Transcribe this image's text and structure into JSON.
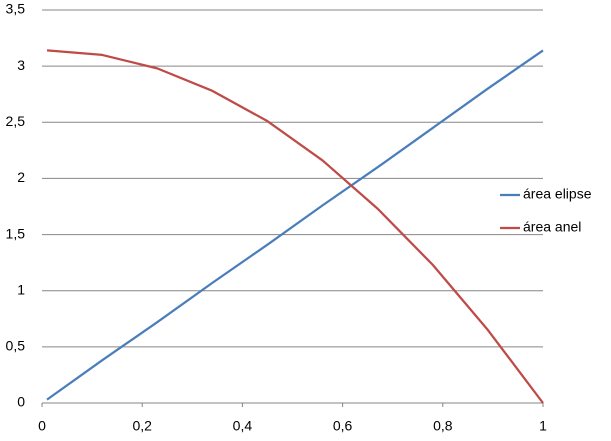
{
  "chart_data": {
    "type": "line",
    "x": [
      0.01,
      0.12,
      0.23,
      0.34,
      0.45,
      0.56,
      0.67,
      0.78,
      0.89,
      1.0
    ],
    "series": [
      {
        "name": "área elipse",
        "color": "#4a7ebb",
        "values": [
          0.03,
          0.38,
          0.72,
          1.07,
          1.41,
          1.76,
          2.1,
          2.45,
          2.8,
          3.14
        ]
      },
      {
        "name": "área anel",
        "color": "#be4b48",
        "values": [
          3.14,
          3.1,
          2.98,
          2.78,
          2.51,
          2.16,
          1.73,
          1.23,
          0.65,
          0.0
        ]
      }
    ],
    "xlim": [
      0,
      1
    ],
    "xticks": [
      0,
      {
        "value": 0.2,
        "label": "0,2"
      },
      {
        "value": 0.4,
        "label": "0,4"
      },
      {
        "value": 0.6,
        "label": "0,6"
      },
      {
        "value": 0.8,
        "label": "0,8"
      },
      1
    ],
    "ylim": [
      0,
      3.5
    ],
    "yticks": [
      0,
      {
        "value": 0.5,
        "label": "0,5"
      },
      1,
      {
        "value": 1.5,
        "label": "1,5"
      },
      2,
      {
        "value": 2.5,
        "label": "2,5"
      },
      3,
      {
        "value": 3.5,
        "label": "3,5"
      }
    ],
    "grid": true,
    "legend": "right"
  }
}
